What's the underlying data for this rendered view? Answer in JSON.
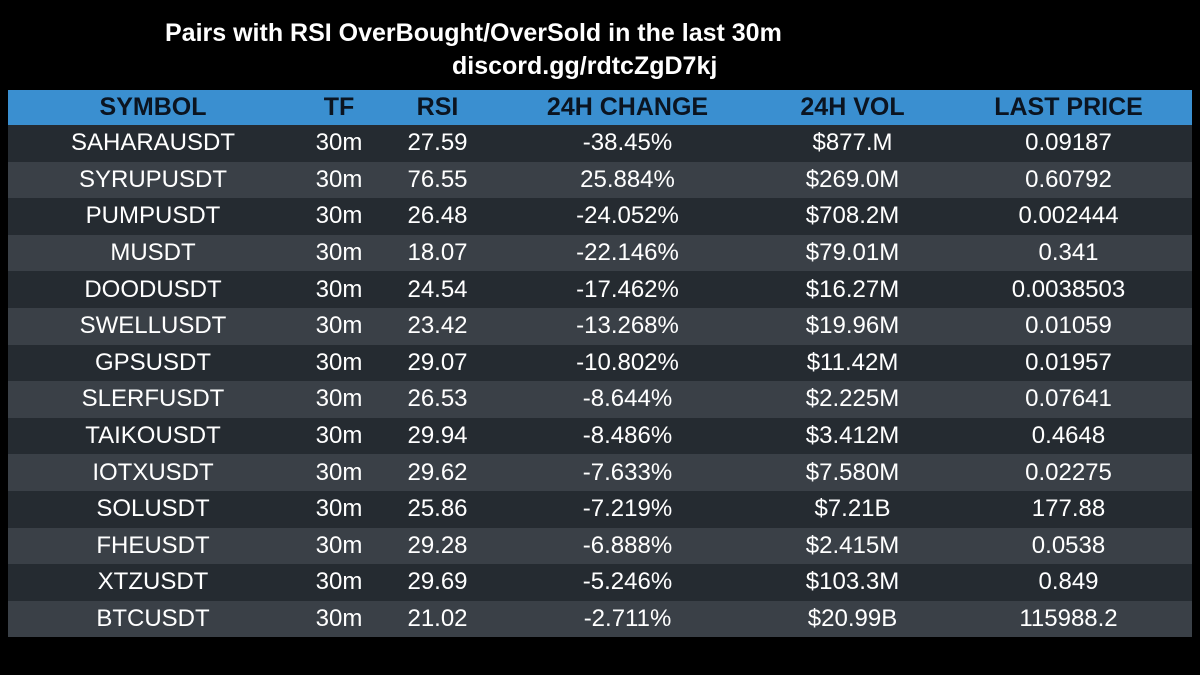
{
  "title": "Pairs with RSI OverBought/OverSold in the last 30m",
  "subtitle": "discord.gg/rdtcZgD7kj",
  "columns": [
    "SYMBOL",
    "TF",
    "RSI",
    "24H CHANGE",
    "24H VOL",
    "LAST PRICE"
  ],
  "rows": [
    [
      "SAHARAUSDT",
      "30m",
      "27.59",
      "-38.45%",
      "$877.M",
      "0.09187"
    ],
    [
      "SYRUPUSDT",
      "30m",
      "76.55",
      "25.884%",
      "$269.0M",
      "0.60792"
    ],
    [
      "PUMPUSDT",
      "30m",
      "26.48",
      "-24.052%",
      "$708.2M",
      "0.002444"
    ],
    [
      "MUSDT",
      "30m",
      "18.07",
      "-22.146%",
      "$79.01M",
      "0.341"
    ],
    [
      "DOODUSDT",
      "30m",
      "24.54",
      "-17.462%",
      "$16.27M",
      "0.0038503"
    ],
    [
      "SWELLUSDT",
      "30m",
      "23.42",
      "-13.268%",
      "$19.96M",
      "0.01059"
    ],
    [
      "GPSUSDT",
      "30m",
      "29.07",
      "-10.802%",
      "$11.42M",
      "0.01957"
    ],
    [
      "SLERFUSDT",
      "30m",
      "26.53",
      "-8.644%",
      "$2.225M",
      "0.07641"
    ],
    [
      "TAIKOUSDT",
      "30m",
      "29.94",
      "-8.486%",
      "$3.412M",
      "0.4648"
    ],
    [
      "IOTXUSDT",
      "30m",
      "29.62",
      "-7.633%",
      "$7.580M",
      "0.02275"
    ],
    [
      "SOLUSDT",
      "30m",
      "25.86",
      "-7.219%",
      "$7.21B",
      "177.88"
    ],
    [
      "FHEUSDT",
      "30m",
      "29.28",
      "-6.888%",
      "$2.415M",
      "0.0538"
    ],
    [
      "XTZUSDT",
      "30m",
      "29.69",
      "-5.246%",
      "$103.3M",
      "0.849"
    ],
    [
      "BTCUSDT",
      "30m",
      "21.02",
      "-2.711%",
      "$20.99B",
      "115988.2"
    ]
  ],
  "colors": {
    "background": "#000000",
    "header": "#3a8fd0",
    "header_text": "#0b1420",
    "row_odd": "#252b31",
    "row_even": "#3a4047",
    "text": "#ffffff"
  }
}
